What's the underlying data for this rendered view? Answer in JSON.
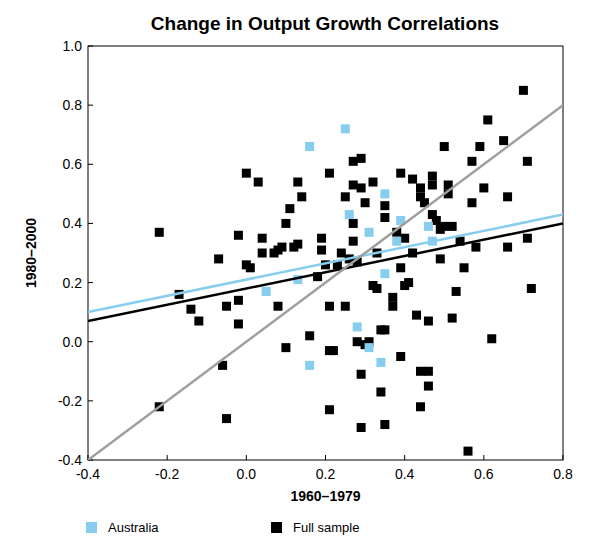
{
  "chart_data": {
    "type": "scatter",
    "title": "Change in Output Growth Correlations",
    "x_label": "1960–1979",
    "y_label": "1980–2000",
    "xlim": [
      -0.4,
      0.8
    ],
    "ylim": [
      -0.4,
      1.0
    ],
    "xticks": [
      -0.4,
      -0.2,
      {
        "value": 0,
        "label": "0.0"
      },
      0.2,
      0.4,
      0.6,
      0.8
    ],
    "yticks": [
      -0.4,
      -0.2,
      {
        "value": 0,
        "label": "0.0"
      },
      0.2,
      0.4,
      0.6,
      0.8,
      {
        "value": 1,
        "label": "1.0"
      }
    ],
    "grid": false,
    "legend": "bottom-left",
    "series": [
      {
        "name": "Australia",
        "type": "scatter",
        "marker": "square",
        "color": "#87cdee",
        "x": [
          0.16,
          0.25,
          0.05,
          0.13,
          0.16,
          0.26,
          0.28,
          0.31,
          0.31,
          0.34,
          0.35,
          0.35,
          0.38,
          0.39,
          0.46,
          0.47
        ],
        "values": [
          0.66,
          0.72,
          0.17,
          0.21,
          -0.08,
          0.43,
          0.05,
          0.37,
          -0.02,
          -0.07,
          0.5,
          0.23,
          0.34,
          0.41,
          0.39,
          0.34
        ]
      },
      {
        "name": "Full sample",
        "type": "scatter",
        "marker": "square",
        "color": "#000000",
        "x": [
          -0.22,
          -0.22,
          -0.17,
          -0.14,
          -0.12,
          -0.07,
          -0.06,
          -0.05,
          -0.05,
          -0.02,
          -0.02,
          -0.02,
          0.0,
          0.0,
          0.01,
          0.03,
          0.04,
          0.04,
          0.07,
          0.08,
          0.08,
          0.09,
          0.1,
          0.1,
          0.11,
          0.12,
          0.13,
          0.13,
          0.14,
          0.16,
          0.18,
          0.19,
          0.19,
          0.2,
          0.21,
          0.21,
          0.21,
          0.22,
          0.21,
          0.23,
          0.24,
          0.25,
          0.25,
          0.26,
          0.27,
          0.27,
          0.27,
          0.27,
          0.28,
          0.28,
          0.29,
          0.29,
          0.29,
          0.29,
          0.3,
          0.3,
          0.31,
          0.32,
          0.32,
          0.33,
          0.33,
          0.34,
          0.34,
          0.35,
          0.35,
          0.35,
          0.35,
          0.37,
          0.37,
          0.38,
          0.39,
          0.39,
          0.39,
          0.4,
          0.4,
          0.41,
          0.42,
          0.42,
          0.43,
          0.44,
          0.44,
          0.44,
          0.44,
          0.45,
          0.46,
          0.46,
          0.46,
          0.47,
          0.47,
          0.47,
          0.48,
          0.49,
          0.49,
          0.5,
          0.5,
          0.51,
          0.51,
          0.52,
          0.52,
          0.53,
          0.54,
          0.55,
          0.56,
          0.57,
          0.57,
          0.58,
          0.59,
          0.6,
          0.61,
          0.62,
          0.65,
          0.66,
          0.66,
          0.7,
          0.71,
          0.71,
          0.72
        ],
        "values": [
          0.37,
          -0.22,
          0.16,
          0.11,
          0.07,
          0.28,
          -0.08,
          -0.26,
          0.12,
          0.14,
          0.06,
          0.36,
          0.57,
          0.26,
          0.25,
          0.54,
          0.35,
          0.3,
          0.3,
          0.12,
          0.31,
          0.32,
          -0.02,
          0.4,
          0.45,
          0.32,
          0.33,
          0.54,
          0.49,
          0.02,
          0.22,
          0.35,
          0.31,
          0.26,
          0.12,
          -0.03,
          -0.23,
          -0.03,
          0.57,
          0.26,
          0.3,
          0.49,
          0.12,
          0.28,
          0.4,
          0.34,
          0.53,
          0.61,
          0.0,
          0.27,
          0.62,
          0.52,
          -0.11,
          -0.29,
          0.47,
          -0.01,
          0.0,
          0.54,
          0.19,
          0.3,
          0.18,
          0.04,
          -0.17,
          0.46,
          0.42,
          -0.28,
          0.04,
          0.15,
          0.12,
          0.37,
          0.25,
          0.57,
          -0.05,
          0.35,
          0.19,
          0.2,
          0.55,
          0.3,
          0.09,
          0.52,
          0.49,
          -0.1,
          -0.22,
          0.47,
          -0.1,
          -0.15,
          0.07,
          0.43,
          0.56,
          0.53,
          0.41,
          0.28,
          0.38,
          0.39,
          0.66,
          0.5,
          0.53,
          0.39,
          0.08,
          0.17,
          0.34,
          0.25,
          -0.37,
          0.61,
          0.47,
          0.32,
          0.66,
          0.52,
          0.75,
          0.01,
          0.68,
          0.32,
          0.49,
          0.85,
          0.61,
          0.35,
          0.18
        ]
      },
      {
        "type": "line",
        "line_style": "solid",
        "color": "#000000",
        "x": [
          -0.4,
          0.8
        ],
        "values": [
          0.07,
          0.4
        ]
      },
      {
        "type": "line",
        "line_style": "solid",
        "color": "#87cdee",
        "x": [
          -0.4,
          0.8
        ],
        "values": [
          0.1,
          0.43
        ]
      },
      {
        "type": "line",
        "line_style": "solid",
        "color": "#9e9e9e",
        "x": [
          -0.4,
          0.8
        ],
        "values": [
          -0.4,
          0.8
        ]
      }
    ]
  }
}
